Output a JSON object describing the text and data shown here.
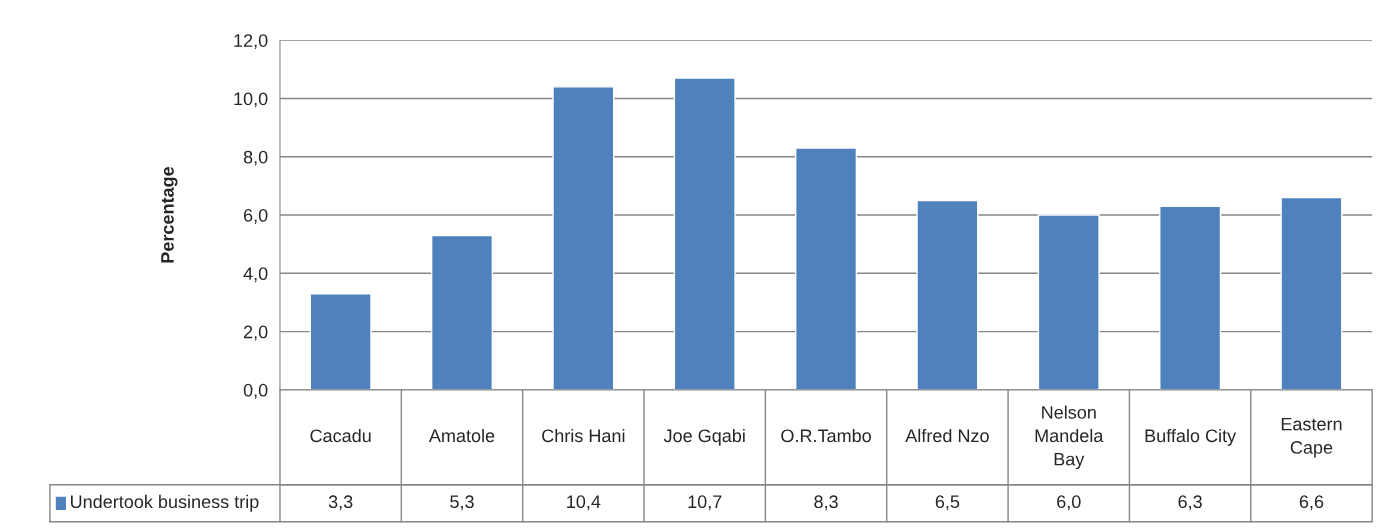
{
  "chart_data": {
    "type": "bar",
    "ylabel": "Percentage",
    "categories": [
      "Cacadu",
      "Amatole",
      "Chris Hani",
      "Joe Gqabi",
      "O.R.Tambo",
      "Alfred Nzo",
      "Nelson\nMandela\nBay",
      "Buffalo City",
      "Eastern\nCape"
    ],
    "series": [
      {
        "name": "Undertook business trip",
        "color": "#4f81bd",
        "values": [
          3.3,
          5.3,
          10.4,
          10.7,
          8.3,
          6.5,
          6.0,
          6.3,
          6.6
        ],
        "value_labels": [
          "3,3",
          "5,3",
          "10,4",
          "10,7",
          "8,3",
          "6,5",
          "6,0",
          "6,3",
          "6,6"
        ]
      }
    ],
    "ylim": [
      0,
      12
    ],
    "yticks": [
      {
        "value": 0,
        "label": "0,0"
      },
      {
        "value": 2,
        "label": "2,0"
      },
      {
        "value": 4,
        "label": "4,0"
      },
      {
        "value": 6,
        "label": "6,0"
      },
      {
        "value": 8,
        "label": "8,0"
      },
      {
        "value": 10,
        "label": "10,0"
      },
      {
        "value": 12,
        "label": "12,0"
      }
    ],
    "grid": "y",
    "legend": "bottom"
  }
}
